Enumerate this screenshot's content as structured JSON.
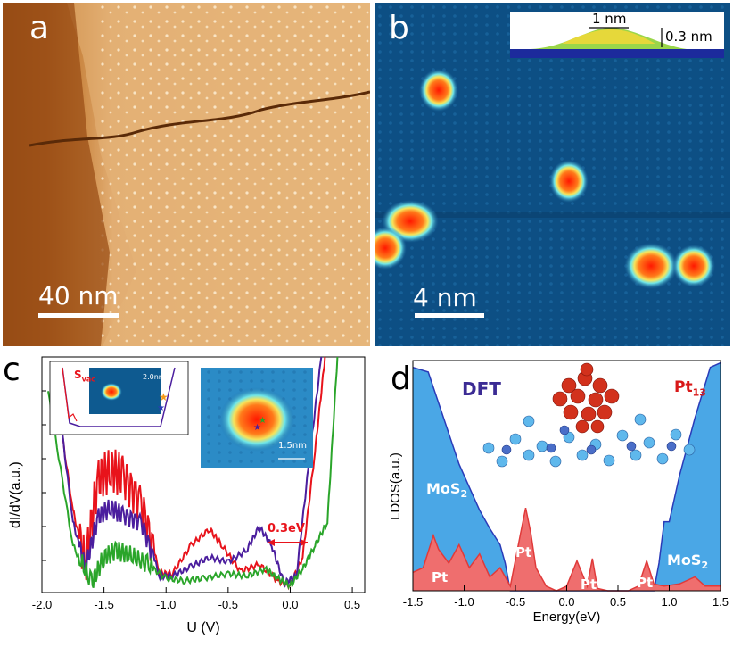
{
  "panel_a": {
    "letter": "a",
    "scalebar_label": "40 nm"
  },
  "panel_b": {
    "letter": "b",
    "scalebar_label": "4 nm",
    "inset_width_label": "1 nm",
    "inset_height_label": "0.3 nm"
  },
  "panel_c": {
    "letter": "c",
    "inset_label_svac": "S",
    "inset_label_svac_sub": "vac",
    "inset_scale": "2.0nm",
    "inset2_scale": "1.5nm",
    "annotation": "0.3eV",
    "colors": {
      "red": "#e8131b",
      "purple": "#4b1e9e",
      "green": "#2aa52a"
    }
  },
  "panel_d": {
    "letter": "d",
    "dft_label": "DFT",
    "pt13_label": "Pt",
    "pt13_sub": "13",
    "mos2_left": "MoS",
    "mos2_right": "MoS",
    "mos2_sub": "2",
    "pt_labels": [
      "Pt",
      "Pt",
      "Pt",
      "Pt"
    ],
    "colors": {
      "blue_fill": "#4aa7e6",
      "blue_line": "#2a3bb8",
      "red_fill": "#ef6e6e",
      "red_line": "#e03a3a"
    }
  },
  "chart_data": [
    {
      "type": "line",
      "title": "",
      "xlabel": "U (V)",
      "ylabel": "dI/dV(a.u.)",
      "xlim": [
        -2.0,
        0.6
      ],
      "xticks": [
        "-2.0",
        "-1.5",
        "-1.0",
        "-0.5",
        "0.0",
        "0.5"
      ],
      "series": [
        {
          "name": "red",
          "x": [
            -1.9,
            -1.75,
            -1.65,
            -1.55,
            -1.45,
            -1.35,
            -1.2,
            -1.05,
            -0.95,
            -0.8,
            -0.65,
            -0.55,
            -0.4,
            -0.25,
            -0.1,
            0.0,
            0.1,
            0.2,
            0.28
          ],
          "y": [
            0.9,
            0.35,
            0.12,
            0.48,
            0.52,
            0.5,
            0.38,
            0.08,
            0.08,
            0.2,
            0.27,
            0.2,
            0.09,
            0.12,
            0.05,
            0.03,
            0.15,
            0.6,
            1.0
          ]
        },
        {
          "name": "purple",
          "x": [
            -1.9,
            -1.75,
            -1.65,
            -1.55,
            -1.45,
            -1.35,
            -1.2,
            -1.05,
            -0.95,
            -0.8,
            -0.65,
            -0.5,
            -0.35,
            -0.25,
            -0.15,
            -0.05,
            0.05,
            0.15,
            0.25
          ],
          "y": [
            0.95,
            0.3,
            0.1,
            0.32,
            0.36,
            0.33,
            0.3,
            0.07,
            0.07,
            0.11,
            0.15,
            0.13,
            0.18,
            0.28,
            0.2,
            0.04,
            0.07,
            0.55,
            1.0
          ]
        },
        {
          "name": "green",
          "x": [
            -1.95,
            -1.75,
            -1.6,
            -1.5,
            -1.4,
            -1.3,
            -1.15,
            -1.0,
            -0.85,
            -0.7,
            -0.5,
            -0.35,
            -0.2,
            -0.1,
            0.0,
            0.1,
            0.2,
            0.3,
            0.38
          ],
          "y": [
            0.85,
            0.2,
            0.04,
            0.15,
            0.18,
            0.16,
            0.12,
            0.06,
            0.05,
            0.06,
            0.08,
            0.07,
            0.1,
            0.06,
            0.03,
            0.1,
            0.2,
            0.3,
            1.0
          ]
        }
      ]
    },
    {
      "type": "area",
      "title": "",
      "xlabel": "Energy(eV)",
      "ylabel": "LDOS(a.u.)",
      "xlim": [
        -1.5,
        1.5
      ],
      "xticks": [
        "-1.5",
        "-1.0",
        "-0.5",
        "0.0",
        "0.5",
        "1.0",
        "1.5"
      ],
      "series": [
        {
          "name": "MoS2",
          "x": [
            -1.5,
            -1.35,
            -1.2,
            -1.05,
            -0.95,
            -0.85,
            -0.75,
            -0.65,
            -0.6,
            -0.55,
            0.85,
            0.9,
            0.95,
            1.0,
            1.1,
            1.25,
            1.4,
            1.5
          ],
          "y": [
            0.97,
            0.95,
            0.75,
            0.55,
            0.45,
            0.35,
            0.27,
            0.2,
            0.12,
            0.0,
            0.0,
            0.12,
            0.3,
            0.3,
            0.5,
            0.75,
            0.97,
            0.99
          ]
        },
        {
          "name": "Pt",
          "x": [
            -1.5,
            -1.4,
            -1.3,
            -1.25,
            -1.15,
            -1.05,
            -0.95,
            -0.85,
            -0.75,
            -0.65,
            -0.55,
            -0.45,
            -0.4,
            -0.35,
            -0.3,
            -0.2,
            -0.1,
            0.0,
            0.1,
            0.2,
            0.25,
            0.3,
            0.4,
            0.5,
            0.6,
            0.7,
            0.78,
            0.85,
            0.95,
            1.1,
            1.25,
            1.35,
            1.5
          ],
          "y": [
            0.08,
            0.1,
            0.24,
            0.18,
            0.12,
            0.2,
            0.1,
            0.16,
            0.06,
            0.1,
            0.02,
            0.25,
            0.36,
            0.25,
            0.1,
            0.02,
            0.0,
            0.02,
            0.13,
            0.02,
            0.14,
            0.01,
            0.0,
            0.0,
            0.0,
            0.02,
            0.13,
            0.03,
            0.02,
            0.03,
            0.06,
            0.02,
            0.02
          ]
        }
      ]
    }
  ]
}
